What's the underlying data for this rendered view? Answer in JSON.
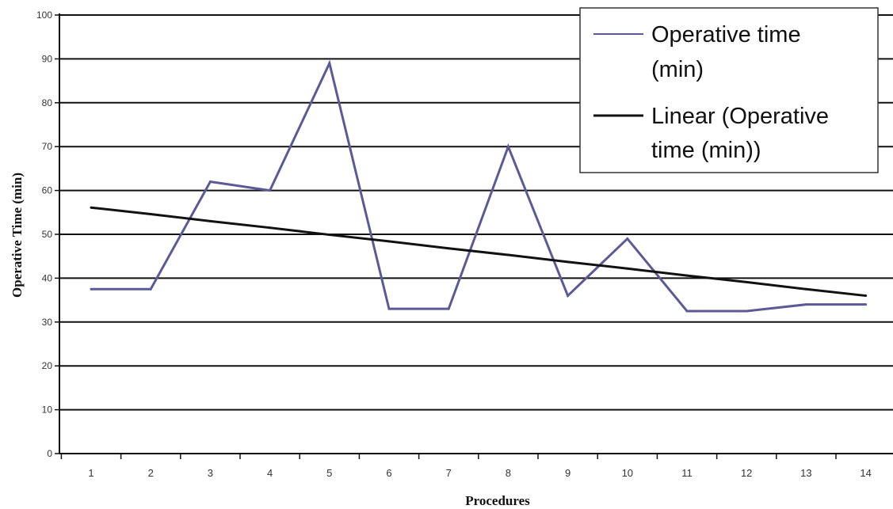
{
  "chart_data": {
    "type": "line",
    "title": "",
    "xlabel": "Procedures",
    "ylabel": "Operative Time (min)",
    "x": [
      1,
      2,
      3,
      4,
      5,
      6,
      7,
      8,
      9,
      10,
      11,
      12,
      13,
      14
    ],
    "ylim": [
      0,
      100
    ],
    "y_ticks": [
      0,
      10,
      20,
      30,
      40,
      50,
      60,
      70,
      80,
      90,
      100
    ],
    "grid": true,
    "legend_position": "top-right",
    "series": [
      {
        "name": "Operative time (min)",
        "legend_lines": [
          "Operative time",
          "(min)"
        ],
        "color": "#5b5a96",
        "values": [
          37.5,
          37.5,
          62,
          60,
          89,
          33,
          33,
          70,
          36,
          49,
          32.5,
          32.5,
          34,
          34
        ]
      },
      {
        "name": "Linear (Operative time (min))",
        "legend_lines": [
          "Linear (Operative",
          "time (min))"
        ],
        "color": "#111111",
        "trendline": true,
        "values": [
          56.1,
          54.6,
          53.0,
          51.5,
          49.9,
          48.4,
          46.8,
          45.3,
          43.7,
          42.2,
          40.6,
          39.1,
          37.5,
          36.0
        ]
      }
    ]
  }
}
